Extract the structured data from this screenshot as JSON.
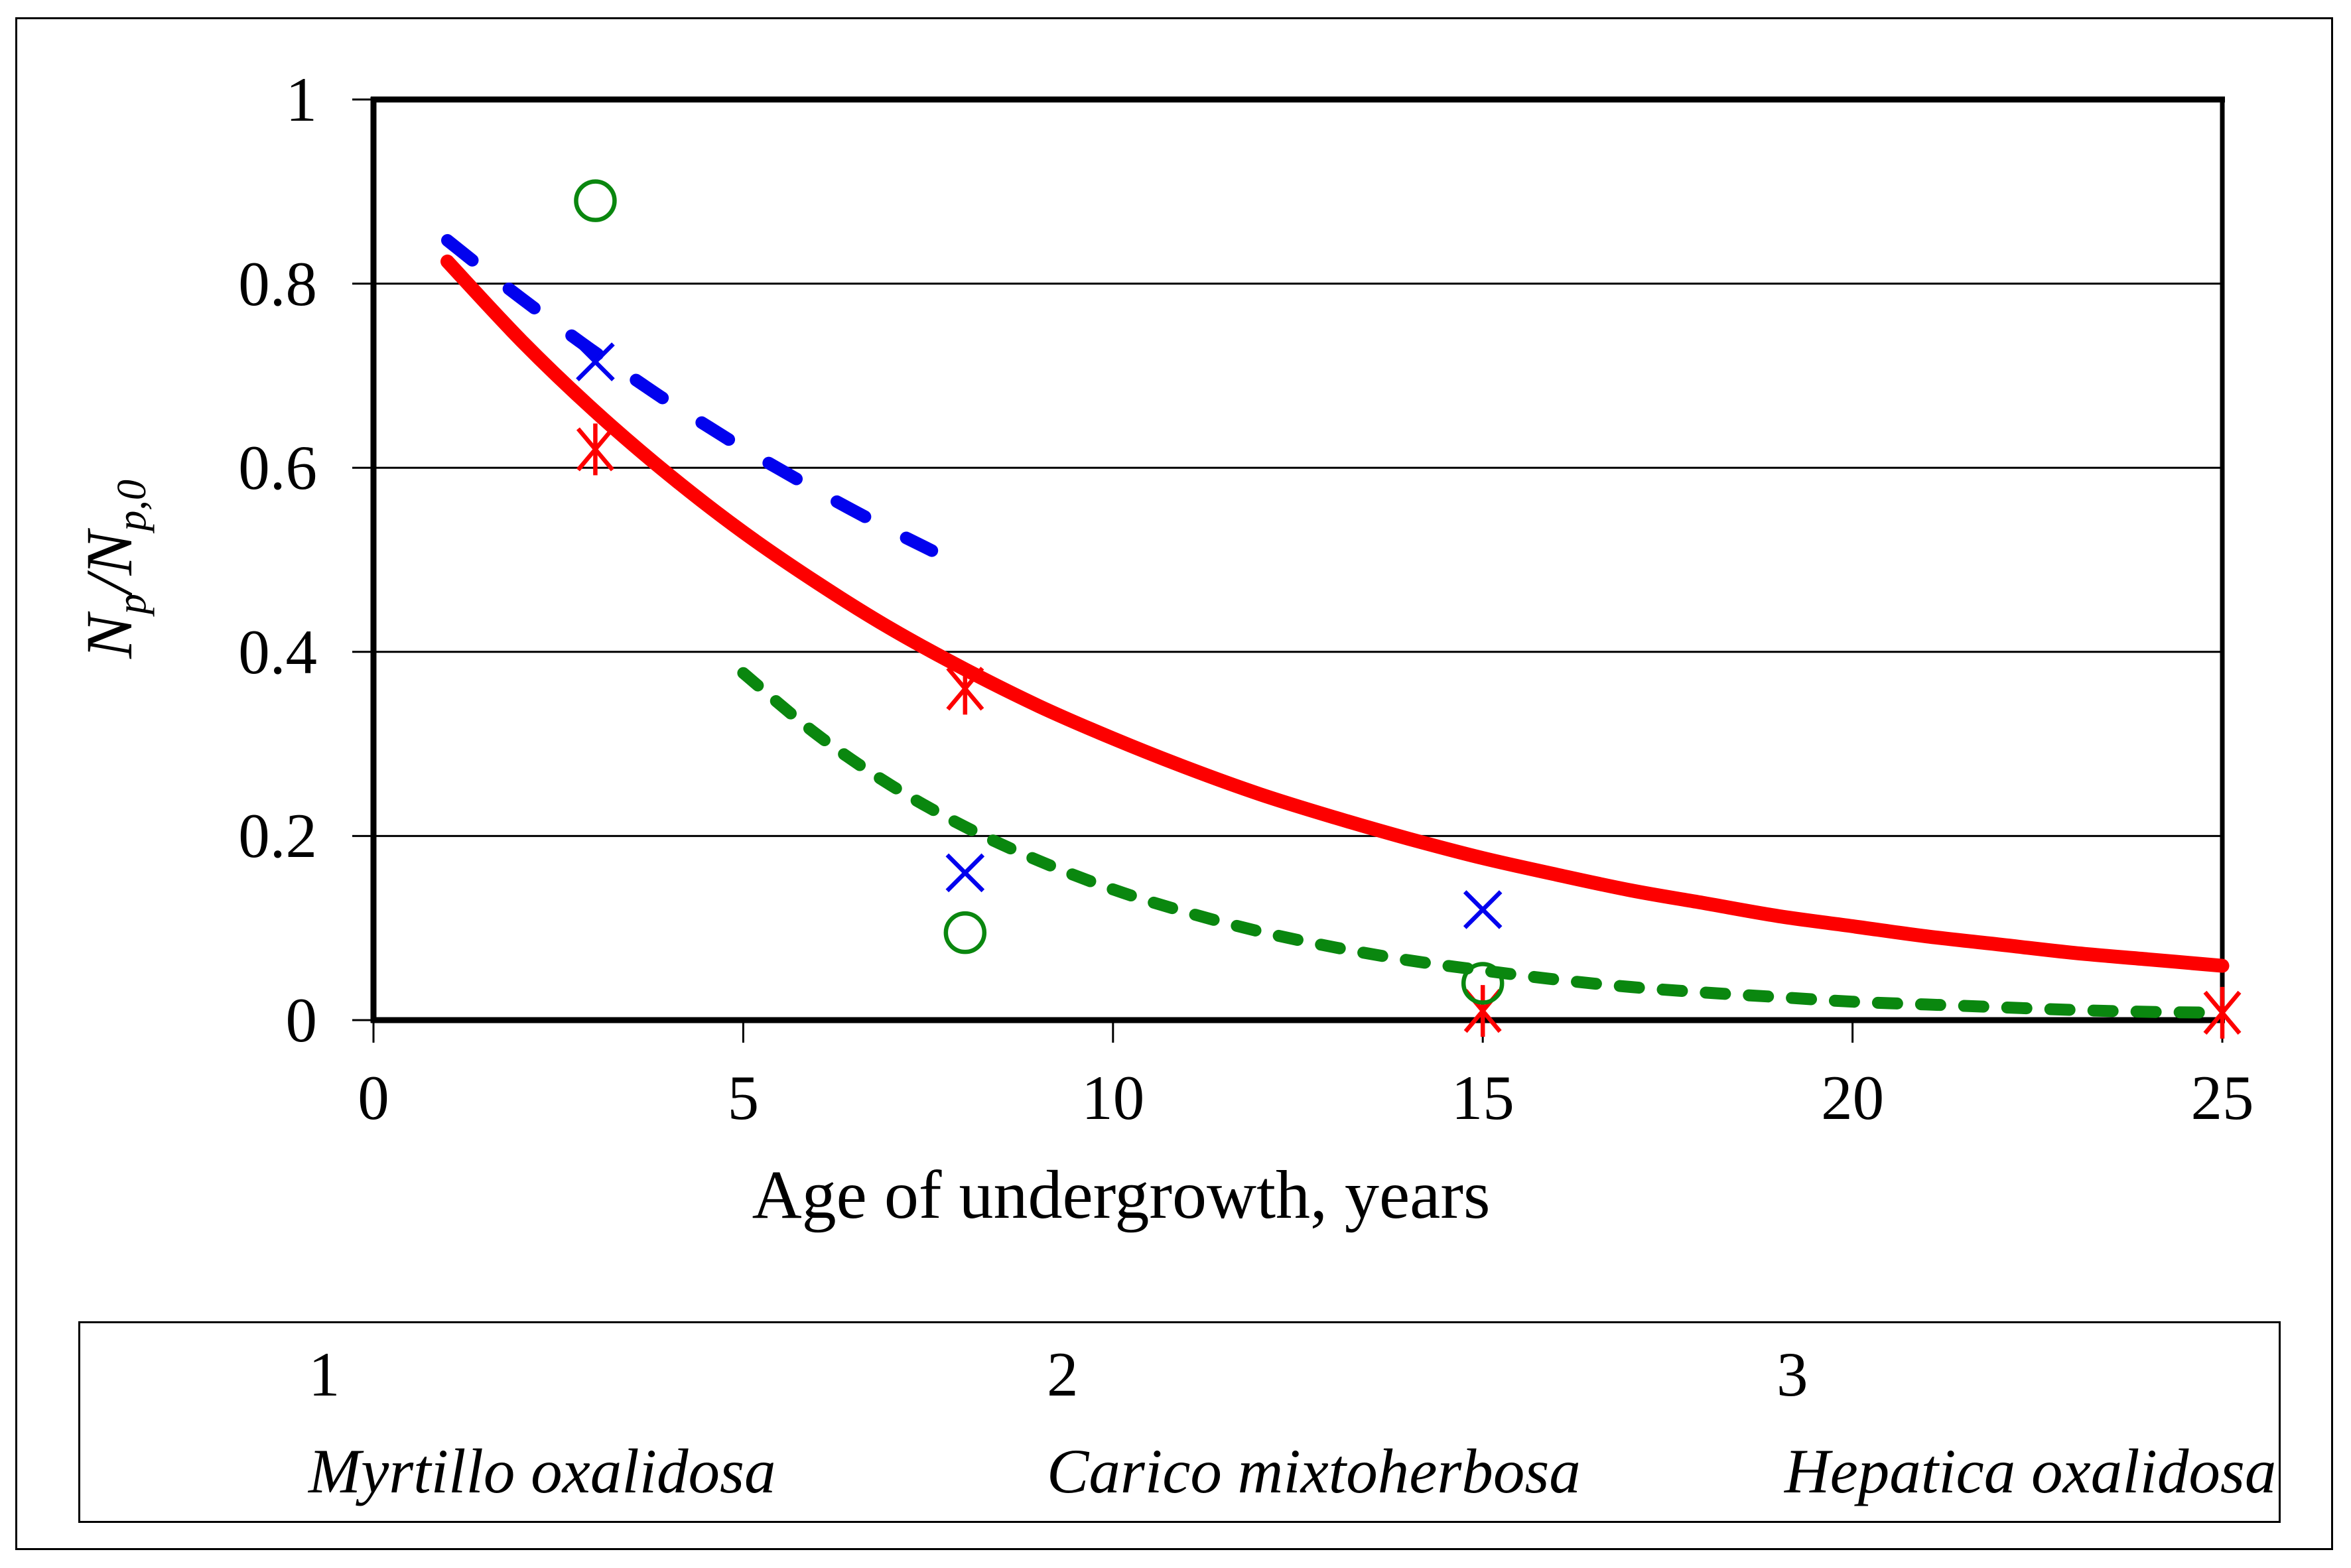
{
  "chart_data": {
    "type": "line+scatter",
    "x_axis": {
      "label": "Age of undergrowth, years",
      "tick_labels": [
        "0",
        "5",
        "10",
        "15",
        "20",
        "25"
      ],
      "tick_values": [
        0,
        5,
        10,
        15,
        20,
        25
      ],
      "range": [
        0,
        25
      ]
    },
    "y_axis": {
      "label_segments": [
        {
          "t": "N",
          "sub": false
        },
        {
          "t": "p",
          "sub": true
        },
        {
          "t": "/N",
          "sub": false
        },
        {
          "t": "p,0",
          "sub": true
        }
      ],
      "tick_labels": [
        "0",
        "0.2",
        "0.4",
        "0.6",
        "0.8",
        "1"
      ],
      "tick_values": [
        0,
        0.2,
        0.4,
        0.6,
        0.8,
        1
      ],
      "gridlines": [
        0.2,
        0.4,
        0.6,
        0.8
      ],
      "range": [
        0,
        1
      ]
    },
    "curves": [
      {
        "name": "1",
        "color": "#0202ee",
        "dash": [
          48,
          70
        ],
        "width": 19,
        "points": [
          [
            1,
            0.847
          ],
          [
            1.5,
            0.815
          ],
          [
            2,
            0.784
          ],
          [
            2.5,
            0.754
          ],
          [
            3,
            0.725
          ],
          [
            3.5,
            0.698
          ],
          [
            4,
            0.671
          ],
          [
            4.5,
            0.646
          ],
          [
            5,
            0.621
          ],
          [
            5.5,
            0.598
          ],
          [
            6,
            0.575
          ],
          [
            6.5,
            0.553
          ],
          [
            7,
            0.532
          ],
          [
            7.55,
            0.51
          ]
        ]
      },
      {
        "name": "2",
        "color": "#fd0000",
        "dash": null,
        "width": 21,
        "points": [
          [
            1,
            0.824
          ],
          [
            2,
            0.738
          ],
          [
            3,
            0.661
          ],
          [
            4,
            0.592
          ],
          [
            5,
            0.53
          ],
          [
            6,
            0.475
          ],
          [
            7,
            0.425
          ],
          [
            8,
            0.381
          ],
          [
            9,
            0.341
          ],
          [
            10,
            0.306
          ],
          [
            11,
            0.274
          ],
          [
            12,
            0.245
          ],
          [
            13,
            0.22
          ],
          [
            14,
            0.197
          ],
          [
            15,
            0.176
          ],
          [
            16,
            0.158
          ],
          [
            17,
            0.141
          ],
          [
            18,
            0.127
          ],
          [
            19,
            0.113
          ],
          [
            20,
            0.102
          ],
          [
            21,
            0.091
          ],
          [
            22,
            0.082
          ],
          [
            23,
            0.073
          ],
          [
            24,
            0.066
          ],
          [
            25,
            0.059
          ]
        ]
      },
      {
        "name": "3",
        "color": "#0a870f",
        "dash": [
          29,
          36
        ],
        "width": 18,
        "points": [
          [
            5,
            0.377
          ],
          [
            6,
            0.31
          ],
          [
            7,
            0.255
          ],
          [
            8,
            0.21
          ],
          [
            9,
            0.173
          ],
          [
            10,
            0.142
          ],
          [
            11,
            0.117
          ],
          [
            12,
            0.096
          ],
          [
            13,
            0.079
          ],
          [
            14,
            0.065
          ],
          [
            15,
            0.054
          ],
          [
            16,
            0.044
          ],
          [
            17,
            0.036
          ],
          [
            18,
            0.03
          ],
          [
            19,
            0.025
          ],
          [
            20,
            0.02
          ],
          [
            21,
            0.017
          ],
          [
            22,
            0.014
          ],
          [
            23,
            0.011
          ],
          [
            24,
            0.009
          ],
          [
            25,
            0.008
          ]
        ]
      }
    ],
    "scatter": [
      {
        "name": "Myrtillo oxalidosa",
        "marker": "x",
        "color": "#0202ee",
        "points": [
          [
            3,
            0.715
          ],
          [
            8,
            0.16
          ],
          [
            15,
            0.12
          ]
        ]
      },
      {
        "name": "Carico mixtoherbosa",
        "marker": "star",
        "color": "#fd0000",
        "points": [
          [
            3,
            0.62
          ],
          [
            8,
            0.36
          ],
          [
            15,
            0.01
          ],
          [
            25,
            0.008
          ]
        ]
      },
      {
        "name": "Hepatica oxalidosa",
        "marker": "circle",
        "color": "#0a870f",
        "points": [
          [
            3,
            0.89
          ],
          [
            8,
            0.095
          ],
          [
            15,
            0.04
          ]
        ]
      }
    ]
  },
  "legend": {
    "row1": [
      {
        "label": "1"
      },
      {
        "label": "2"
      },
      {
        "label": "3"
      }
    ],
    "row2": [
      {
        "label": "Myrtillo oxalidosa"
      },
      {
        "label": "Carico mixtoherbosa"
      },
      {
        "label": "Hepatica oxalidosa"
      }
    ]
  },
  "titles": {
    "x_axis": "Age of undergrowth, years"
  },
  "colors": {
    "series1": "#0202ee",
    "series2": "#fd0000",
    "series3": "#0a870f",
    "axis": "#000000"
  }
}
